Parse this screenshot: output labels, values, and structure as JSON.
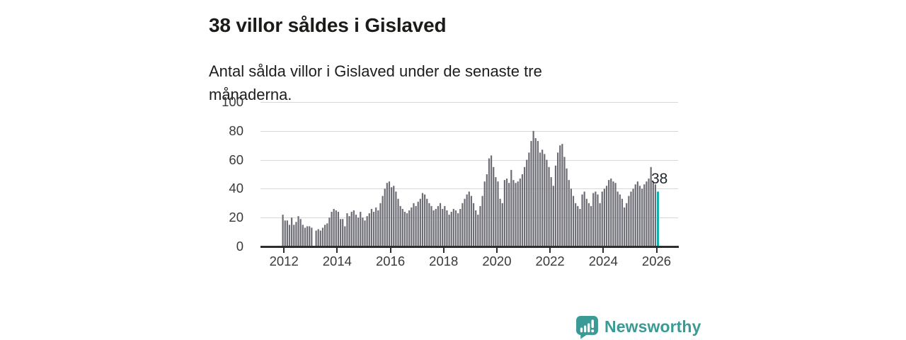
{
  "header": {
    "title": "38 villor såldes i Gislaved",
    "subtitle": "Antal sålda villor i Gislaved under de senaste tre månaderna."
  },
  "chart_data": {
    "type": "bar",
    "title": "38 villor såldes i Gislaved",
    "subtitle": "Antal sålda villor i Gislaved under de senaste tre månaderna.",
    "x_start": "2012-01",
    "x_frequency": "monthly",
    "x_tick_labels": [
      "2012",
      "2014",
      "2016",
      "2018",
      "2020",
      "2022",
      "2024",
      "2026"
    ],
    "y_ticks": [
      0,
      20,
      40,
      60,
      80,
      100
    ],
    "ylim": [
      0,
      100
    ],
    "grid": true,
    "bar_color": "#6d6d75",
    "values": [
      22,
      18,
      18,
      15,
      20,
      15,
      17,
      21,
      19,
      15,
      13,
      14,
      14,
      13,
      0,
      11,
      12,
      11,
      13,
      15,
      16,
      20,
      24,
      26,
      25,
      24,
      19,
      19,
      14,
      23,
      21,
      24,
      25,
      22,
      20,
      24,
      20,
      18,
      21,
      23,
      26,
      24,
      27,
      25,
      30,
      35,
      40,
      44,
      45,
      41,
      42,
      38,
      33,
      28,
      26,
      24,
      23,
      25,
      27,
      30,
      28,
      31,
      33,
      37,
      36,
      33,
      30,
      28,
      25,
      26,
      28,
      30,
      26,
      28,
      25,
      22,
      24,
      26,
      25,
      23,
      26,
      30,
      33,
      36,
      38,
      35,
      30,
      25,
      22,
      28,
      35,
      45,
      50,
      61,
      63,
      55,
      48,
      45,
      33,
      30,
      46,
      47,
      44,
      53,
      46,
      44,
      45,
      47,
      50,
      55,
      60,
      65,
      73,
      80,
      75,
      73,
      65,
      67,
      64,
      60,
      55,
      48,
      42,
      56,
      65,
      70,
      71,
      62,
      54,
      46,
      40,
      35,
      30,
      28,
      26,
      36,
      38,
      33,
      30,
      28,
      37,
      38,
      36,
      30,
      38,
      40,
      42,
      46,
      47,
      45,
      44,
      38,
      36,
      33,
      27,
      30,
      35,
      38,
      40,
      43,
      45,
      42,
      40,
      43,
      45,
      47,
      55,
      45,
      43,
      38
    ],
    "highlight": {
      "index": 169,
      "value": 38,
      "label": "38",
      "color": "#12b0ac"
    },
    "annotation": "38"
  },
  "footer": {
    "brand": "Newsworthy",
    "brand_color": "#3a9a96",
    "logo_icon": "bar-chart-speech-bubble-icon"
  }
}
